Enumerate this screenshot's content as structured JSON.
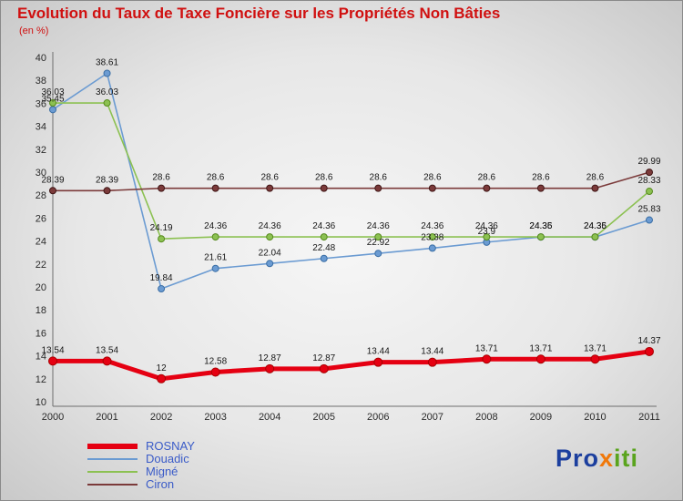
{
  "chart_data": {
    "type": "line",
    "title": "Evolution du Taux de Taxe Foncière sur les Propriétés Non Bâties",
    "subtitle": "(en %)",
    "x": [
      2000,
      2001,
      2002,
      2003,
      2004,
      2005,
      2006,
      2007,
      2008,
      2009,
      2010,
      2011
    ],
    "ylim": [
      10,
      40
    ],
    "ytick_step": 2,
    "grid": false,
    "legend_position": "bottom-left",
    "series": [
      {
        "name": "ROSNAY",
        "color": "#e50012",
        "marker_stroke": "#a80000",
        "width": 5,
        "values": [
          13.54,
          13.54,
          12,
          12.58,
          12.87,
          12.87,
          13.44,
          13.44,
          13.71,
          13.71,
          13.71,
          14.37
        ]
      },
      {
        "name": "Douadic",
        "color": "#6b9bd2",
        "marker_stroke": "#3a6ea5",
        "width": 1.6,
        "values": [
          35.45,
          38.61,
          19.84,
          21.61,
          22.04,
          22.48,
          22.92,
          23.38,
          23.9,
          24.35,
          24.35,
          25.83
        ]
      },
      {
        "name": "Migné",
        "color": "#8cc152",
        "marker_stroke": "#568a1e",
        "width": 1.6,
        "values": [
          36.03,
          36.03,
          24.19,
          24.36,
          24.36,
          24.36,
          24.36,
          24.36,
          24.36,
          24.36,
          24.36,
          28.33
        ]
      },
      {
        "name": "Ciron",
        "color": "#7b3a3a",
        "marker_stroke": "#401616",
        "width": 1.6,
        "values": [
          28.39,
          28.39,
          28.6,
          28.6,
          28.6,
          28.6,
          28.6,
          28.6,
          28.6,
          28.6,
          28.6,
          29.99
        ]
      }
    ]
  },
  "colors": {
    "title": "#d01010",
    "legend_text": "#3a5bc8",
    "logo_pro": "#1c3f9e",
    "logo_x": "#f0780a",
    "logo_iti": "#5aa41e"
  },
  "logo": {
    "pro": "Pro",
    "x": "x",
    "iti": "iti"
  }
}
